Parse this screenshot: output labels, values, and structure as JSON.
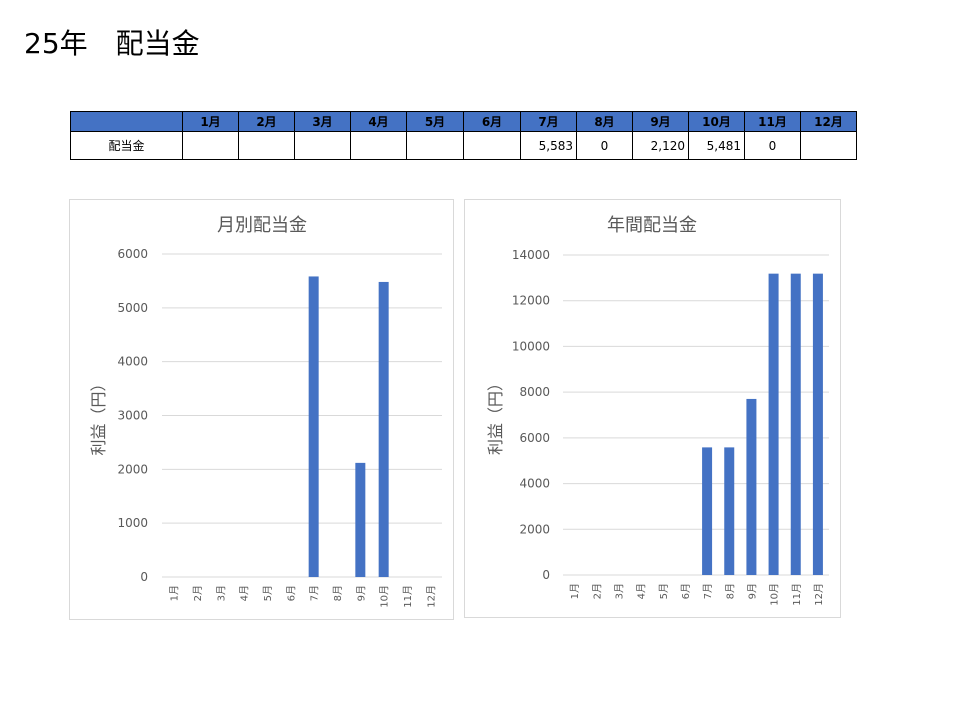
{
  "page": {
    "title": "25年　配当金"
  },
  "table": {
    "row_label": "配当金",
    "months": [
      "1月",
      "2月",
      "3月",
      "4月",
      "5月",
      "6月",
      "7月",
      "8月",
      "9月",
      "10月",
      "11月",
      "12月"
    ],
    "values": [
      "",
      "",
      "",
      "",
      "",
      "",
      "5,583",
      "0",
      "2,120",
      "5,481",
      "0",
      ""
    ],
    "header_color": "#4472c4"
  },
  "chart_data": [
    {
      "type": "bar",
      "title": "月別配当金",
      "ylabel": "利益（円）",
      "categories": [
        "1月",
        "2月",
        "3月",
        "4月",
        "5月",
        "6月",
        "7月",
        "8月",
        "9月",
        "10月",
        "11月",
        "12月"
      ],
      "values": [
        0,
        0,
        0,
        0,
        0,
        0,
        5583,
        0,
        2120,
        5481,
        0,
        0
      ],
      "ylim": [
        0,
        6000
      ],
      "yticks": [
        0,
        1000,
        2000,
        3000,
        4000,
        5000,
        6000
      ],
      "grid": true,
      "color": "#4472c4"
    },
    {
      "type": "bar",
      "title": "年間配当金",
      "ylabel": "利益（円）",
      "categories": [
        "1月",
        "2月",
        "3月",
        "4月",
        "5月",
        "6月",
        "7月",
        "8月",
        "9月",
        "10月",
        "11月",
        "12月"
      ],
      "values": [
        0,
        0,
        0,
        0,
        0,
        0,
        5583,
        5583,
        7703,
        13184,
        13184,
        13184
      ],
      "ylim": [
        0,
        14000
      ],
      "yticks": [
        0,
        2000,
        4000,
        6000,
        8000,
        10000,
        12000,
        14000
      ],
      "grid": true,
      "color": "#4472c4"
    }
  ]
}
